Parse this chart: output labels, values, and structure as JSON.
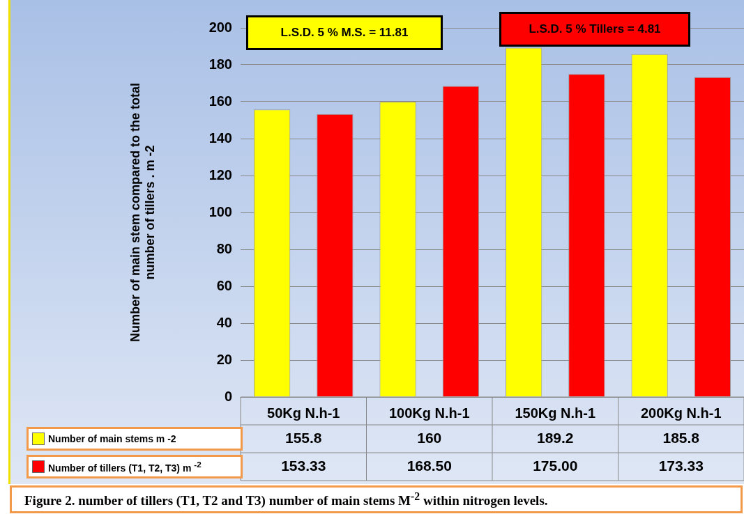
{
  "chart_data": {
    "type": "bar",
    "ylabel": "Number of main stem compared to the total\nnumber of tillers . m -2",
    "categories": [
      "50Kg N.h-1",
      "100Kg N.h-1",
      "150Kg N.h-1",
      "200Kg N.h-1"
    ],
    "series": [
      {
        "name": "Number of main stems m -2",
        "color": "#ffff00",
        "values": [
          155.8,
          160,
          189.2,
          185.8
        ],
        "value_labels": [
          "155.8",
          "160",
          "189.2",
          "185.8"
        ]
      },
      {
        "name": "Number of tillers (T1, T2, T3) m $^{-2}$",
        "color": "#ff0000",
        "values": [
          153.33,
          168.5,
          175,
          173.33
        ],
        "value_labels": [
          "153.33",
          "168.50",
          "175.00",
          "173.33"
        ]
      }
    ],
    "ylim": [
      0,
      200
    ],
    "yticks": [
      0,
      20,
      40,
      60,
      80,
      100,
      120,
      140,
      160,
      180,
      200
    ],
    "grid": "y",
    "legend": "bottom",
    "annotations": [
      "L.S.D. 5 % M.S. = 11.81",
      "L.S.D. 5 % Tillers = 4.81",
      "Figure 2. number of tillers (T1, T2 and T3) number of main stems M$^{-2}$ within nitrogen levels."
    ]
  }
}
